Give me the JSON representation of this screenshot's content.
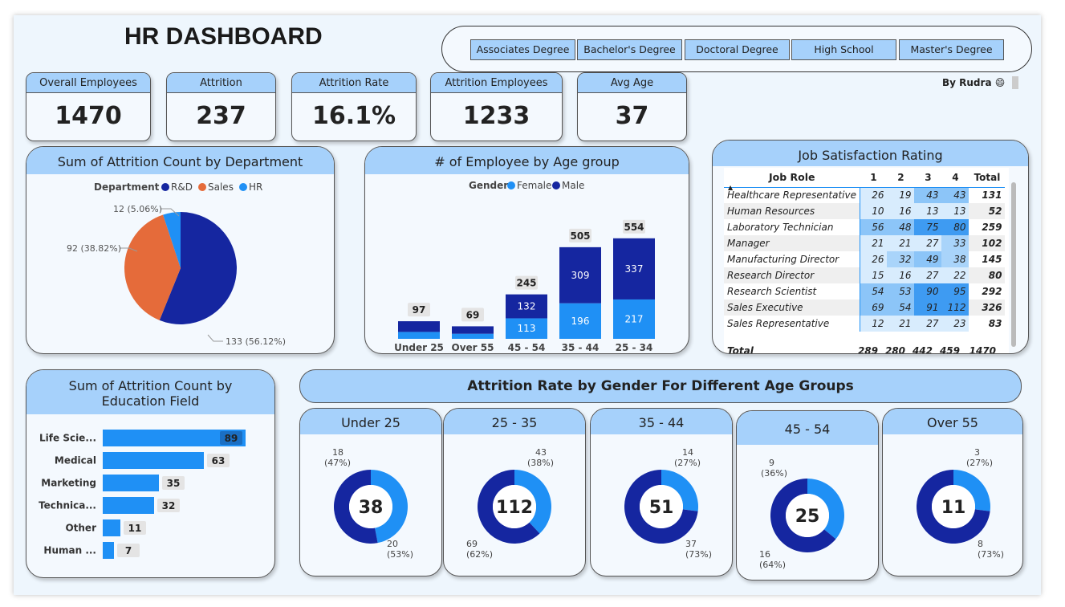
{
  "title": "HR DASHBOARD",
  "author": "By Rudra 😄",
  "slicer": [
    "Associates Degree",
    "Bachelor's Degree",
    "Doctoral Degree",
    "High School",
    "Master's Degree"
  ],
  "kpis": [
    {
      "label": "Overall Employees",
      "value": "1470"
    },
    {
      "label": "Attrition",
      "value": "237"
    },
    {
      "label": "Attrition Rate",
      "value": "16.1%"
    },
    {
      "label": "Attrition Employees",
      "value": "1233"
    },
    {
      "label": "Avg Age",
      "value": "37"
    }
  ],
  "colors": {
    "dark_blue": "#1526a0",
    "light_blue": "#1f90f5",
    "orange": "#e56b3a",
    "header_bg": "#a6d1fb"
  },
  "dept_chart": {
    "title": "Sum of Attrition Count by Department",
    "legend_title": "Department",
    "legend": [
      "R&D",
      "Sales",
      "HR"
    ],
    "labels": [
      "133 (56.12%)",
      "92 (38.82%)",
      "12 (5.06%)"
    ]
  },
  "age_chart": {
    "title": "# of Employee by Age group",
    "legend_title": "Gender",
    "legend": [
      "Female",
      "Male"
    ]
  },
  "job_sat": {
    "title": "Job Satisfaction Rating",
    "headers": [
      "Job Role",
      "1",
      "2",
      "3",
      "4",
      "Total"
    ],
    "rows": [
      {
        "role": "Healthcare Representative",
        "v": [
          "26",
          "19",
          "43",
          "43"
        ],
        "total": "131"
      },
      {
        "role": "Human Resources",
        "v": [
          "10",
          "16",
          "13",
          "13"
        ],
        "total": "52"
      },
      {
        "role": "Laboratory Technician",
        "v": [
          "56",
          "48",
          "75",
          "80"
        ],
        "total": "259"
      },
      {
        "role": "Manager",
        "v": [
          "21",
          "21",
          "27",
          "33"
        ],
        "total": "102"
      },
      {
        "role": "Manufacturing Director",
        "v": [
          "26",
          "32",
          "49",
          "38"
        ],
        "total": "145"
      },
      {
        "role": "Research Director",
        "v": [
          "15",
          "16",
          "27",
          "22"
        ],
        "total": "80"
      },
      {
        "role": "Research Scientist",
        "v": [
          "54",
          "53",
          "90",
          "95"
        ],
        "total": "292"
      },
      {
        "role": "Sales Executive",
        "v": [
          "69",
          "54",
          "91",
          "112"
        ],
        "total": "326"
      },
      {
        "role": "Sales Representative",
        "v": [
          "12",
          "21",
          "27",
          "23"
        ],
        "total": "83"
      }
    ],
    "total_row": {
      "label": "Total",
      "v": [
        "289",
        "280",
        "442",
        "459"
      ],
      "total": "1470"
    }
  },
  "edu_chart": {
    "title": "Sum of Attrition Count by Education Field"
  },
  "gender_section": {
    "title": "Attrition Rate by Gender For Different Age Groups",
    "donuts": [
      {
        "title": "Under 25",
        "center": "38",
        "light": "18",
        "light_pct": "(47%)",
        "dark": "20",
        "dark_pct": "(53%)",
        "light_share": 0.47
      },
      {
        "title": "25 - 35",
        "center": "112",
        "light": "43",
        "light_pct": "(38%)",
        "dark": "69",
        "dark_pct": "(62%)",
        "light_share": 0.38
      },
      {
        "title": "35 - 44",
        "center": "51",
        "light": "14",
        "light_pct": "(27%)",
        "dark": "37",
        "dark_pct": "(73%)",
        "light_share": 0.27
      },
      {
        "title": "45 - 54",
        "center": "25",
        "light": "9",
        "light_pct": "(36%)",
        "dark": "16",
        "dark_pct": "(64%)",
        "light_share": 0.36
      },
      {
        "title": "Over 55",
        "center": "11",
        "light": "3",
        "light_pct": "(27%)",
        "dark": "8",
        "dark_pct": "(73%)",
        "light_share": 0.27
      }
    ]
  },
  "chart_data": [
    {
      "type": "pie",
      "title": "Sum of Attrition Count by Department",
      "categories": [
        "R&D",
        "Sales",
        "HR"
      ],
      "values": [
        133,
        92,
        12
      ],
      "percent": [
        56.12,
        38.82,
        5.06
      ],
      "legend": "top"
    },
    {
      "type": "bar",
      "title": "# of Employee by Age group",
      "categories": [
        "Under 25",
        "Over 55",
        "45 - 54",
        "35 - 44",
        "25 - 34"
      ],
      "series": [
        {
          "name": "Female",
          "values": [
            38,
            28,
            113,
            196,
            217
          ]
        },
        {
          "name": "Male",
          "values": [
            59,
            41,
            132,
            309,
            337
          ]
        }
      ],
      "totals": [
        97,
        69,
        245,
        505,
        554
      ],
      "legend": "top"
    },
    {
      "type": "bar",
      "title": "Sum of Attrition Count by Education Field",
      "categories": [
        "Life Scie...",
        "Medical",
        "Marketing",
        "Technica...",
        "Other",
        "Human ..."
      ],
      "values": [
        89,
        63,
        35,
        32,
        11,
        7
      ]
    }
  ]
}
